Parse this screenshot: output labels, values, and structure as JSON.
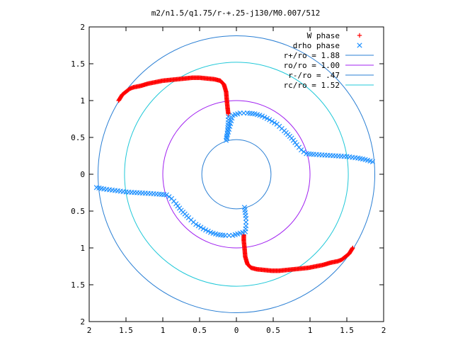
{
  "chart_data": {
    "type": "scatter",
    "title": "m2/n1.5/q1.75/r-+.25-j130/M0.007/512",
    "xlabel": "",
    "ylabel": "",
    "xlim": [
      -2,
      2
    ],
    "ylim": [
      -2,
      2
    ],
    "x_ticks": [
      -2,
      -1.5,
      -1,
      -0.5,
      0,
      0.5,
      1,
      1.5,
      2
    ],
    "x_tick_labels": [
      "2",
      "1.5",
      "1",
      "0.5",
      "0",
      "0.5",
      "1",
      "1.5",
      "2"
    ],
    "y_ticks": [
      2,
      1.5,
      1,
      0.5,
      0,
      -0.5,
      -1,
      -1.5,
      -2
    ],
    "y_tick_labels": [
      "2",
      "1.5",
      "1",
      "0.5",
      "0",
      "0.5",
      "1",
      "1.5",
      "2"
    ],
    "grid": false,
    "legend_position": "top-right",
    "series": [
      {
        "name": "W phase",
        "marker": "plus",
        "color": "#ff0000",
        "points": [
          [
            -1.6,
            1.0
          ],
          [
            -1.55,
            1.08
          ],
          [
            -1.5,
            1.12
          ],
          [
            -1.45,
            1.16
          ],
          [
            -1.4,
            1.18
          ],
          [
            -1.3,
            1.2
          ],
          [
            -1.2,
            1.23
          ],
          [
            -1.1,
            1.25
          ],
          [
            -1.0,
            1.27
          ],
          [
            -0.9,
            1.28
          ],
          [
            -0.8,
            1.29
          ],
          [
            -0.7,
            1.3
          ],
          [
            -0.6,
            1.31
          ],
          [
            -0.5,
            1.31
          ],
          [
            -0.4,
            1.3
          ],
          [
            -0.3,
            1.29
          ],
          [
            -0.22,
            1.27
          ],
          [
            -0.17,
            1.22
          ],
          [
            -0.14,
            1.12
          ],
          [
            -0.13,
            1.0
          ],
          [
            -0.12,
            0.9
          ],
          [
            -0.11,
            0.82
          ],
          [
            1.58,
            -1.0
          ],
          [
            1.53,
            -1.08
          ],
          [
            1.48,
            -1.12
          ],
          [
            1.43,
            -1.16
          ],
          [
            1.38,
            -1.18
          ],
          [
            1.28,
            -1.2
          ],
          [
            1.18,
            -1.23
          ],
          [
            1.08,
            -1.25
          ],
          [
            0.98,
            -1.27
          ],
          [
            0.88,
            -1.28
          ],
          [
            0.78,
            -1.29
          ],
          [
            0.68,
            -1.3
          ],
          [
            0.58,
            -1.31
          ],
          [
            0.48,
            -1.31
          ],
          [
            0.38,
            -1.3
          ],
          [
            0.28,
            -1.29
          ],
          [
            0.2,
            -1.27
          ],
          [
            0.15,
            -1.22
          ],
          [
            0.12,
            -1.12
          ],
          [
            0.11,
            -1.0
          ],
          [
            0.1,
            -0.9
          ],
          [
            0.1,
            -0.82
          ]
        ]
      },
      {
        "name": "drho phase",
        "marker": "cross",
        "color": "#1e90ff",
        "points": [
          [
            -0.11,
            0.78
          ],
          [
            -0.11,
            0.7
          ],
          [
            -0.12,
            0.6
          ],
          [
            -0.13,
            0.52
          ],
          [
            -0.14,
            0.46
          ],
          [
            -0.05,
            0.8
          ],
          [
            0.05,
            0.83
          ],
          [
            0.15,
            0.83
          ],
          [
            0.25,
            0.82
          ],
          [
            0.35,
            0.79
          ],
          [
            0.45,
            0.74
          ],
          [
            0.55,
            0.68
          ],
          [
            0.65,
            0.59
          ],
          [
            0.75,
            0.49
          ],
          [
            0.82,
            0.4
          ],
          [
            0.88,
            0.33
          ],
          [
            0.95,
            0.28
          ],
          [
            1.05,
            0.27
          ],
          [
            1.2,
            0.26
          ],
          [
            1.35,
            0.25
          ],
          [
            1.5,
            0.24
          ],
          [
            1.65,
            0.22
          ],
          [
            1.75,
            0.2
          ],
          [
            1.85,
            0.17
          ],
          [
            0.11,
            -0.45
          ],
          [
            0.12,
            -0.52
          ],
          [
            0.13,
            -0.6
          ],
          [
            0.13,
            -0.7
          ],
          [
            0.12,
            -0.78
          ],
          [
            0.05,
            -0.8
          ],
          [
            -0.05,
            -0.83
          ],
          [
            -0.15,
            -0.83
          ],
          [
            -0.25,
            -0.82
          ],
          [
            -0.35,
            -0.79
          ],
          [
            -0.45,
            -0.74
          ],
          [
            -0.55,
            -0.68
          ],
          [
            -0.65,
            -0.59
          ],
          [
            -0.75,
            -0.49
          ],
          [
            -0.82,
            -0.4
          ],
          [
            -0.88,
            -0.33
          ],
          [
            -0.95,
            -0.28
          ],
          [
            -1.05,
            -0.27
          ],
          [
            -1.2,
            -0.26
          ],
          [
            -1.35,
            -0.25
          ],
          [
            -1.5,
            -0.24
          ],
          [
            -1.65,
            -0.22
          ],
          [
            -1.8,
            -0.2
          ],
          [
            -1.9,
            -0.18
          ]
        ]
      },
      {
        "name": "r+/ro = 1.88",
        "type": "circle",
        "radius": 1.88,
        "color": "#2a7fd4"
      },
      {
        "name": "ro/ro = 1.00",
        "type": "circle",
        "radius": 1.0,
        "color": "#a020f0"
      },
      {
        "name": "r-/ro = .47",
        "type": "circle",
        "radius": 0.47,
        "color": "#2a7fd4"
      },
      {
        "name": "rc/ro = 1.52",
        "type": "circle",
        "radius": 1.52,
        "color": "#20c8d8"
      }
    ]
  }
}
